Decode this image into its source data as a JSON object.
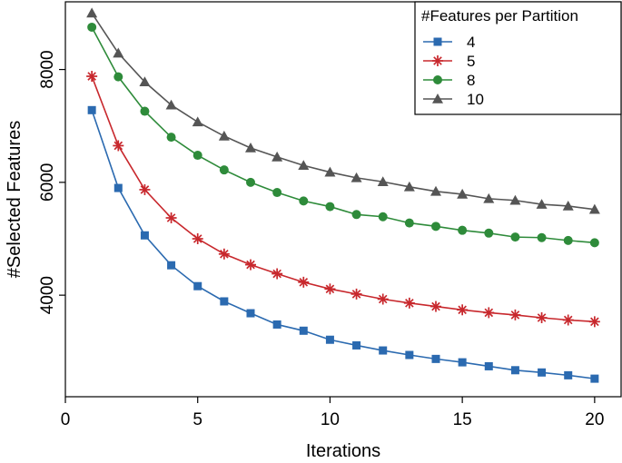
{
  "chart_data": {
    "type": "line",
    "title": "",
    "xlabel": "Iterations",
    "ylabel": "#Selected Features",
    "xlim": [
      0,
      21
    ],
    "ylim": [
      2200,
      9200
    ],
    "x_ticks": [
      0,
      5,
      10,
      15,
      20
    ],
    "y_ticks": [
      4000,
      6000,
      8000
    ],
    "grid": false,
    "legend": {
      "title": "#Features per Partition",
      "placement": "top-right"
    },
    "x": [
      1,
      2,
      3,
      4,
      5,
      6,
      7,
      8,
      9,
      10,
      11,
      12,
      13,
      14,
      15,
      16,
      17,
      18,
      19,
      20
    ],
    "series": [
      {
        "name": "4",
        "color": "#2b6ab0",
        "marker": "square",
        "values": [
          7280,
          5900,
          5060,
          4530,
          4160,
          3890,
          3680,
          3480,
          3370,
          3210,
          3110,
          3020,
          2940,
          2870,
          2810,
          2740,
          2670,
          2630,
          2580,
          2520
        ]
      },
      {
        "name": "5",
        "color": "#c8282d",
        "marker": "star",
        "values": [
          7880,
          6650,
          5870,
          5370,
          5000,
          4730,
          4540,
          4380,
          4230,
          4110,
          4020,
          3930,
          3860,
          3800,
          3740,
          3690,
          3650,
          3600,
          3560,
          3530
        ]
      },
      {
        "name": "8",
        "color": "#2e8b3a",
        "marker": "circle",
        "values": [
          8750,
          7870,
          7260,
          6800,
          6480,
          6220,
          6000,
          5820,
          5670,
          5570,
          5430,
          5390,
          5280,
          5220,
          5150,
          5100,
          5030,
          5020,
          4970,
          4930
        ]
      },
      {
        "name": "10",
        "color": "#555555",
        "marker": "triangle",
        "values": [
          9000,
          8290,
          7780,
          7370,
          7070,
          6820,
          6610,
          6450,
          6300,
          6180,
          6080,
          6010,
          5920,
          5840,
          5790,
          5710,
          5680,
          5610,
          5580,
          5520
        ]
      }
    ]
  }
}
